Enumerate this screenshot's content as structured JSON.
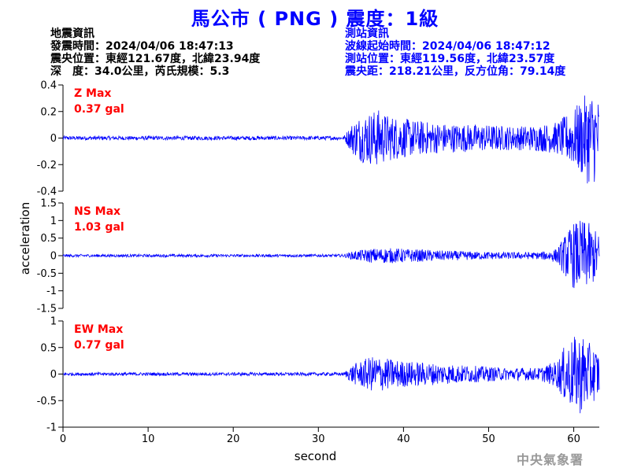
{
  "header": {
    "title": "馬公市 ( PNG ) 震度：1級"
  },
  "quake_info": {
    "heading": "地震資訊",
    "origin_time": "發震時間：2024/04/06 18:47:13",
    "epicenter": "震央位置：東經121.67度，北緯23.94度",
    "depth_magnitude": "深　度：34.0公里，芮氏規模：5.3"
  },
  "station_info": {
    "heading": "測站資訊",
    "wave_start": "波線起始時間：2024/04/06 18:47:12",
    "station_location": "測站位置：東經119.56度，北緯23.57度",
    "distance_azimuth": "震央距：218.21公里，反方位角：79.14度"
  },
  "credit": "中央氣象署",
  "colors": {
    "trace": "#0000ff",
    "max_label": "#ff0000",
    "title": "#0000ff"
  },
  "chart_data": {
    "type": "line",
    "xlabel": "second",
    "ylabel": "acceleration",
    "xlim": [
      0,
      63
    ],
    "xticks": [
      0,
      10,
      20,
      30,
      40,
      50,
      60
    ],
    "grid": false,
    "panels": [
      {
        "name": "Z",
        "max_label": "Z Max",
        "max_value": "0.37 gal",
        "max_gal": 0.37,
        "ylim": [
          -0.4,
          0.4
        ],
        "yticks": [
          -0.4,
          -0.2,
          0,
          0.2,
          0.4
        ],
        "ytick_labels": [
          "-0.4",
          "-0.2",
          "0",
          "0.2",
          "0.4"
        ],
        "envelope": {
          "t": [
            0,
            33,
            34,
            35,
            36,
            37,
            38,
            40,
            42,
            45,
            50,
            53,
            56,
            58,
            60,
            61,
            62,
            63
          ],
          "amp": [
            0.015,
            0.015,
            0.12,
            0.18,
            0.2,
            0.22,
            0.18,
            0.15,
            0.13,
            0.11,
            0.1,
            0.09,
            0.1,
            0.12,
            0.22,
            0.3,
            0.37,
            0.3
          ]
        }
      },
      {
        "name": "NS",
        "max_label": "NS Max",
        "max_value": "1.03 gal",
        "max_gal": 1.03,
        "ylim": [
          -1.5,
          1.5
        ],
        "yticks": [
          -1.5,
          -1,
          -0.5,
          0,
          0.5,
          1,
          1.5
        ],
        "ytick_labels": [
          "-1.5",
          "-1",
          "-0.5",
          "0",
          "0.5",
          "1",
          "1.5"
        ],
        "envelope": {
          "t": [
            0,
            33,
            34,
            36,
            38,
            40,
            44,
            48,
            52,
            56,
            58,
            59,
            60,
            61,
            62,
            63
          ],
          "amp": [
            0.04,
            0.04,
            0.12,
            0.2,
            0.22,
            0.2,
            0.15,
            0.12,
            0.1,
            0.1,
            0.2,
            0.6,
            0.95,
            1.03,
            0.9,
            0.6
          ]
        }
      },
      {
        "name": "EW",
        "max_label": "EW Max",
        "max_value": "0.77 gal",
        "max_gal": 0.77,
        "ylim": [
          -1,
          1
        ],
        "yticks": [
          -1,
          -0.5,
          0,
          0.5,
          1
        ],
        "ytick_labels": [
          "-1",
          "-0.5",
          "0",
          "0.5",
          "1"
        ],
        "envelope": {
          "t": [
            0,
            33,
            34,
            36,
            37,
            38,
            40,
            44,
            48,
            52,
            56,
            58,
            59,
            60,
            61,
            62,
            63
          ],
          "amp": [
            0.03,
            0.03,
            0.18,
            0.32,
            0.35,
            0.3,
            0.25,
            0.2,
            0.16,
            0.12,
            0.12,
            0.25,
            0.55,
            0.7,
            0.77,
            0.55,
            0.45
          ]
        }
      }
    ]
  }
}
